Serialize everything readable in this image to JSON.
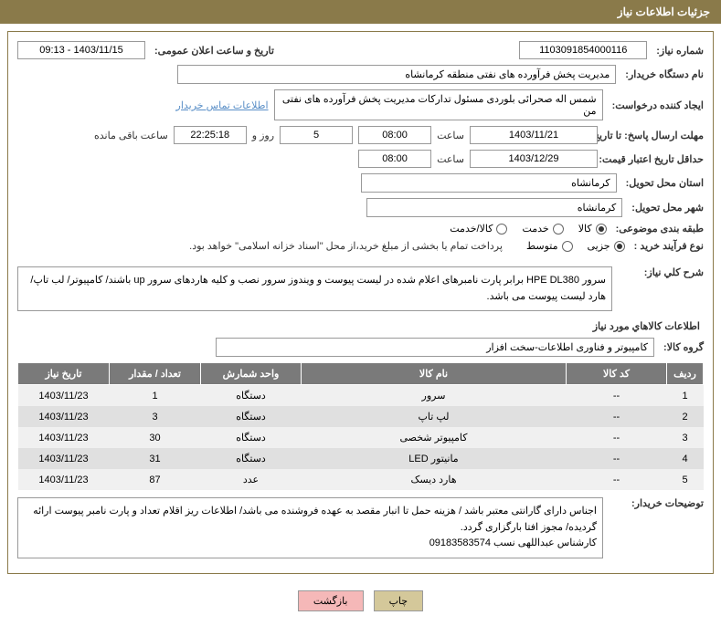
{
  "header": {
    "title": "جزئیات اطلاعات نیاز"
  },
  "form": {
    "need_no_label": "شماره نیاز:",
    "need_no": "1103091854000116",
    "announce_label": "تاریخ و ساعت اعلان عمومی:",
    "announce_value": "1403/11/15 - 09:13",
    "buyer_org_label": "نام دستگاه خریدار:",
    "buyer_org": "مدیریت پخش فرآورده های نفتی منطقه کرمانشاه",
    "requester_label": "ایجاد کننده درخواست:",
    "requester": "شمس اله صحرائی بلوردی مسئول تدارکات  مدیریت پخش فرآورده های نفتی من",
    "contact_link": "اطلاعات تماس خریدار",
    "deadline_label": "مهلت ارسال پاسخ: تا تاریخ:",
    "deadline_date": "1403/11/21",
    "time_label": "ساعت",
    "deadline_time": "08:00",
    "days_value": "5",
    "days_and": "روز و",
    "countdown": "22:25:18",
    "remaining_label": "ساعت باقی مانده",
    "validity_label": "حداقل تاریخ اعتبار قیمت: تا تاریخ:",
    "validity_date": "1403/12/29",
    "validity_time": "08:00",
    "province_label": "استان محل تحویل:",
    "province": "کرمانشاه",
    "city_label": "شهر محل تحویل:",
    "city": "کرمانشاه",
    "category_label": "طبقه بندی موضوعی:",
    "cat_goods": "کالا",
    "cat_service": "خدمت",
    "cat_goods_service": "کالا/خدمت",
    "purchase_type_label": "نوع فرآیند خرید :",
    "pt_partial": "جزیی",
    "pt_medium": "متوسط",
    "purchase_note": "پرداخت تمام یا بخشی از مبلغ خرید،از محل \"اسناد خزانه اسلامی\" خواهد بود.",
    "desc_label": "شرح کلي نیاز:",
    "desc_text": "سرور HPE DL380 برابر پارت نامبرهای اعلام شده در لیست پیوست و ویندوز سرور نصب و کلیه هاردهای سرور up باشند/ کامپیوتر/ لب تاپ/ هارد لیست پیوست می باشد.",
    "items_section": "اطلاعات کالاهاي مورد نیاز",
    "group_label": "گروه کالا:",
    "group_value": "کامپیوتر و فناوری اطلاعات-سخت افزار",
    "buyer_notes_label": "توضیحات خریدار:",
    "buyer_notes": "اجناس دارای گارانتی معتبر باشد / هزینه حمل تا انبار مقصد به عهده فروشنده می باشد/ اطلاعات ریز اقلام تعداد و پارت نامبر پیوست ارائه گردیده/ مجوز افتا بارگزاری گردد.\nکارشناس    عبداللهی نسب  09183583574"
  },
  "table": {
    "headers": [
      "ردیف",
      "کد کالا",
      "نام کالا",
      "واحد شمارش",
      "تعداد / مقدار",
      "تاریخ نیاز"
    ],
    "rows": [
      [
        "1",
        "--",
        "سرور",
        "دستگاه",
        "1",
        "1403/11/23"
      ],
      [
        "2",
        "--",
        "لپ تاپ",
        "دستگاه",
        "3",
        "1403/11/23"
      ],
      [
        "3",
        "--",
        "کامپیوتر شخصی",
        "دستگاه",
        "30",
        "1403/11/23"
      ],
      [
        "4",
        "--",
        "مانیتور LED",
        "دستگاه",
        "31",
        "1403/11/23"
      ],
      [
        "5",
        "--",
        "هارد دیسک",
        "عدد",
        "87",
        "1403/11/23"
      ]
    ]
  },
  "buttons": {
    "print": "چاپ",
    "back": "بازگشت"
  },
  "colors": {
    "header_bg": "#8a7a4a",
    "th_bg": "#7a7a7a",
    "row_odd": "#f0f0f0",
    "row_even": "#e0e0e0"
  }
}
